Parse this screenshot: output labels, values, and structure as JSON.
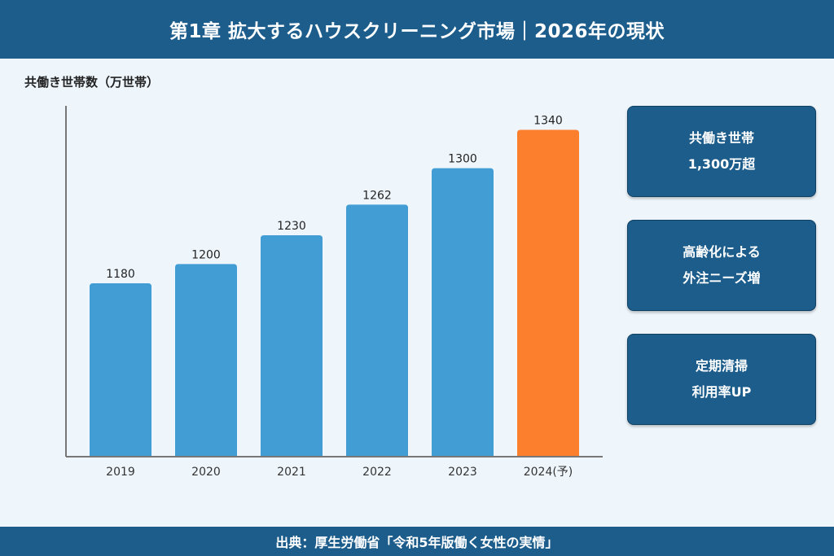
{
  "header": {
    "title": "第1章 拡大するハウスクリーニング市場｜2026年の現状"
  },
  "footer": {
    "source": "出典：厚生労働省「令和5年版働く女性の実情」"
  },
  "chart_data": {
    "type": "bar",
    "ylabel": "共働き世帯数（万世帯）",
    "categories": [
      "2019",
      "2020",
      "2021",
      "2022",
      "2023",
      "2024(予)"
    ],
    "values": [
      1180,
      1200,
      1230,
      1262,
      1300,
      1340
    ],
    "data_labels": [
      "1180",
      "1200",
      "1230",
      "1262",
      "1300",
      "1340"
    ],
    "ylim": [
      1000,
      1365
    ],
    "colors": [
      "#419dd4",
      "#419dd4",
      "#419dd4",
      "#419dd4",
      "#419dd4",
      "#fc7f2e"
    ],
    "grid": false,
    "legend": "none"
  },
  "cards": [
    {
      "line1": "共働き世帯",
      "line2": "1,300万超"
    },
    {
      "line1": "高齢化による",
      "line2": "外注ニーズ増"
    },
    {
      "line1": "定期清掃",
      "line2": "利用率UP"
    }
  ]
}
